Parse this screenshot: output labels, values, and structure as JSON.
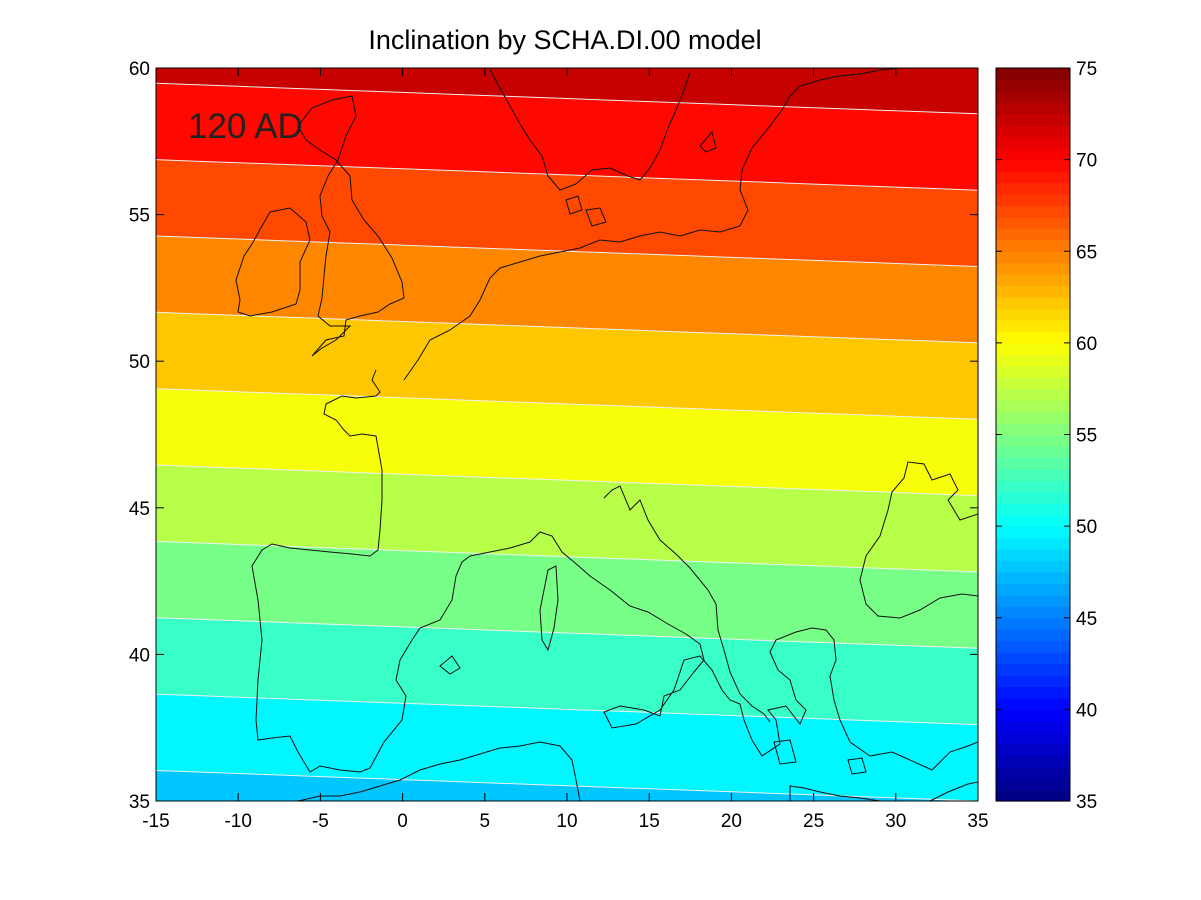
{
  "chart_data": {
    "type": "heatmap",
    "title": "Inclination by SCHA.DI.00 model",
    "annotation": "120 AD",
    "xlim": [
      -15,
      35
    ],
    "ylim": [
      35,
      60
    ],
    "x_ticks": [
      -15,
      -10,
      -5,
      0,
      5,
      10,
      15,
      20,
      25,
      30,
      35
    ],
    "y_ticks": [
      35,
      40,
      45,
      50,
      55,
      60
    ],
    "x_tick_labels": [
      "-15",
      "-10",
      "-5",
      "0",
      "5",
      "10",
      "15",
      "20",
      "25",
      "30",
      "35"
    ],
    "y_tick_labels": [
      "35",
      "40",
      "45",
      "50",
      "55",
      "60"
    ],
    "colorbar": {
      "range": [
        35,
        75
      ],
      "ticks": [
        35,
        40,
        45,
        50,
        55,
        60,
        65,
        70,
        75
      ],
      "tick_labels": [
        "35",
        "40",
        "45",
        "50",
        "55",
        "60",
        "65",
        "70",
        "75"
      ],
      "colormap": "jet"
    },
    "contour_levels": [
      48.5,
      51,
      53.5,
      56,
      58.5,
      61,
      63.5,
      66,
      68.5,
      71
    ],
    "field_samples": [
      {
        "lon": -15,
        "lat": 35,
        "value": 47.5
      },
      {
        "lon": 35,
        "lat": 35,
        "value": 48.5
      },
      {
        "lon": -15,
        "lat": 60,
        "value": 71.5
      },
      {
        "lon": 35,
        "lat": 60,
        "value": 72.5
      }
    ],
    "overlay": "coastlines"
  }
}
